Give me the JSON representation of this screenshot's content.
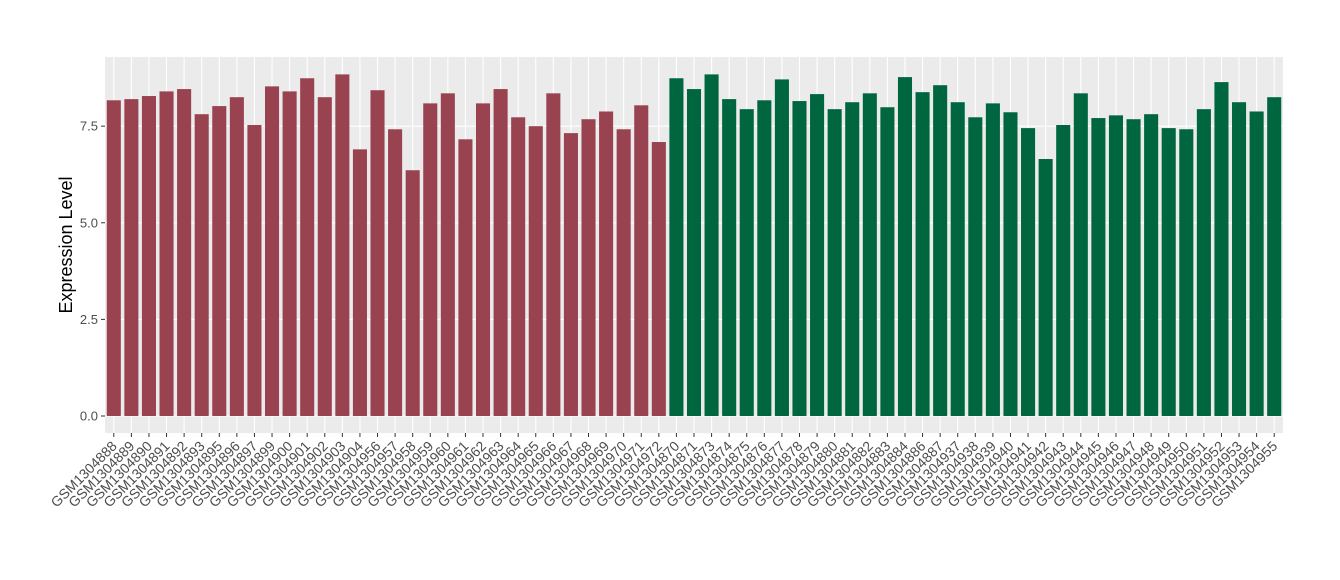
{
  "chart_data": {
    "type": "bar",
    "y_label": "Expression Level",
    "categories": [
      "GSM1304888",
      "GSM1304889",
      "GSM1304890",
      "GSM1304891",
      "GSM1304892",
      "GSM1304893",
      "GSM1304895",
      "GSM1304896",
      "GSM1304897",
      "GSM1304899",
      "GSM1304900",
      "GSM1304901",
      "GSM1304902",
      "GSM1304903",
      "GSM1304904",
      "GSM1304956",
      "GSM1304957",
      "GSM1304958",
      "GSM1304959",
      "GSM1304960",
      "GSM1304961",
      "GSM1304962",
      "GSM1304963",
      "GSM1304964",
      "GSM1304965",
      "GSM1304966",
      "GSM1304967",
      "GSM1304968",
      "GSM1304969",
      "GSM1304970",
      "GSM1304971",
      "GSM1304972",
      "GSM1304870",
      "GSM1304871",
      "GSM1304873",
      "GSM1304874",
      "GSM1304875",
      "GSM1304876",
      "GSM1304877",
      "GSM1304878",
      "GSM1304879",
      "GSM1304880",
      "GSM1304881",
      "GSM1304882",
      "GSM1304883",
      "GSM1304884",
      "GSM1304886",
      "GSM1304887",
      "GSM1304937",
      "GSM1304938",
      "GSM1304939",
      "GSM1304940",
      "GSM1304941",
      "GSM1304942",
      "GSM1304943",
      "GSM1304944",
      "GSM1304945",
      "GSM1304946",
      "GSM1304947",
      "GSM1304948",
      "GSM1304949",
      "GSM1304950",
      "GSM1304951",
      "GSM1304952",
      "GSM1304953",
      "GSM1304954",
      "GSM1304955"
    ],
    "values": [
      8.17,
      8.2,
      8.28,
      8.4,
      8.46,
      7.81,
      8.02,
      8.25,
      7.53,
      8.53,
      8.4,
      8.74,
      8.25,
      8.84,
      6.9,
      8.43,
      7.42,
      6.36,
      8.09,
      8.35,
      7.16,
      8.09,
      8.46,
      7.73,
      7.5,
      8.35,
      7.32,
      7.68,
      7.88,
      7.42,
      8.04,
      7.09,
      8.74,
      8.46,
      8.84,
      8.2,
      7.94,
      8.17,
      8.71,
      8.15,
      8.33,
      7.94,
      8.12,
      8.35,
      7.99,
      8.77,
      8.38,
      8.56,
      8.12,
      7.73,
      8.09,
      7.86,
      7.45,
      6.65,
      7.53,
      8.35,
      7.71,
      7.78,
      7.68,
      7.81,
      7.45,
      7.42,
      7.94,
      8.64,
      8.12,
      7.88,
      8.25
    ],
    "colors": [
      "#9a4350",
      "#9a4350",
      "#9a4350",
      "#9a4350",
      "#9a4350",
      "#9a4350",
      "#9a4350",
      "#9a4350",
      "#9a4350",
      "#9a4350",
      "#9a4350",
      "#9a4350",
      "#9a4350",
      "#9a4350",
      "#9a4350",
      "#9a4350",
      "#9a4350",
      "#9a4350",
      "#9a4350",
      "#9a4350",
      "#9a4350",
      "#9a4350",
      "#9a4350",
      "#9a4350",
      "#9a4350",
      "#9a4350",
      "#9a4350",
      "#9a4350",
      "#9a4350",
      "#9a4350",
      "#9a4350",
      "#9a4350",
      "#006640",
      "#006640",
      "#006640",
      "#006640",
      "#006640",
      "#006640",
      "#006640",
      "#006640",
      "#006640",
      "#006640",
      "#006640",
      "#006640",
      "#006640",
      "#006640",
      "#006640",
      "#006640",
      "#006640",
      "#006640",
      "#006640",
      "#006640",
      "#006640",
      "#006640",
      "#006640",
      "#006640",
      "#006640",
      "#006640",
      "#006640",
      "#006640",
      "#006640",
      "#006640",
      "#006640",
      "#006640",
      "#006640",
      "#006640",
      "#006640"
    ],
    "ylim": [
      -0.44,
      9.29
    ],
    "yticks": [
      {
        "value": 0,
        "label": "0.0"
      },
      2.5,
      {
        "value": 5,
        "label": "5.0"
      },
      7.5
    ],
    "grid": true
  }
}
